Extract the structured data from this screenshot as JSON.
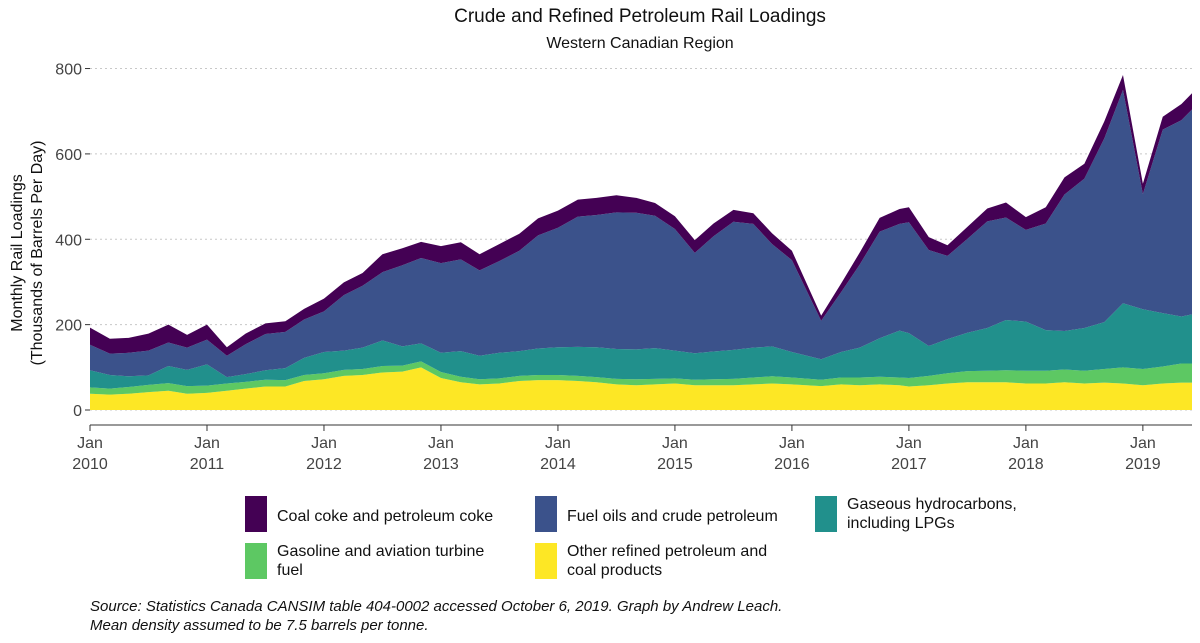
{
  "chart_data": {
    "type": "area",
    "stacked": true,
    "title": "Crude and Refined Petroleum Rail Loadings",
    "subtitle": "Western Canadian Region",
    "ylabel_lines": [
      "Monthly Rail Loadings",
      "(Thousands of Barrels Per Day)"
    ],
    "xlabel": "",
    "ylim": [
      0,
      820
    ],
    "yticks": [
      0,
      200,
      400,
      600,
      800
    ],
    "xlim": [
      2010.0,
      2019.42
    ],
    "xticks": [
      {
        "value": 2010,
        "lines": [
          "Jan",
          "2010"
        ]
      },
      {
        "value": 2011,
        "lines": [
          "Jan",
          "2011"
        ]
      },
      {
        "value": 2012,
        "lines": [
          "Jan",
          "2012"
        ]
      },
      {
        "value": 2013,
        "lines": [
          "Jan",
          "2013"
        ]
      },
      {
        "value": 2014,
        "lines": [
          "Jan",
          "2014"
        ]
      },
      {
        "value": 2015,
        "lines": [
          "Jan",
          "2015"
        ]
      },
      {
        "value": 2016,
        "lines": [
          "Jan",
          "2016"
        ]
      },
      {
        "value": 2017,
        "lines": [
          "Jan",
          "2017"
        ]
      },
      {
        "value": 2018,
        "lines": [
          "Jan",
          "2018"
        ]
      },
      {
        "value": 2019,
        "lines": [
          "Jan",
          "2019"
        ]
      }
    ],
    "grid": "horizontal-dotted",
    "legend_position": "bottom",
    "x": [
      2010.0,
      2010.17,
      2010.33,
      2010.5,
      2010.67,
      2010.83,
      2011.0,
      2011.17,
      2011.33,
      2011.5,
      2011.67,
      2011.83,
      2012.0,
      2012.17,
      2012.33,
      2012.5,
      2012.67,
      2012.83,
      2013.0,
      2013.17,
      2013.33,
      2013.5,
      2013.67,
      2013.83,
      2014.0,
      2014.17,
      2014.33,
      2014.5,
      2014.67,
      2014.83,
      2015.0,
      2015.17,
      2015.33,
      2015.5,
      2015.67,
      2015.83,
      2016.0,
      2016.25,
      2016.42,
      2016.58,
      2016.75,
      2016.92,
      2017.0,
      2017.17,
      2017.33,
      2017.5,
      2017.67,
      2017.83,
      2018.0,
      2018.17,
      2018.33,
      2018.5,
      2018.67,
      2018.83,
      2019.0,
      2019.17,
      2019.33,
      2019.42
    ],
    "series": [
      {
        "name": "Other refined petroleum and coal products",
        "color": "#FDE725",
        "values": [
          38,
          36,
          38,
          42,
          45,
          38,
          40,
          45,
          50,
          55,
          55,
          68,
          72,
          80,
          82,
          88,
          90,
          100,
          75,
          65,
          60,
          62,
          68,
          70,
          70,
          68,
          65,
          60,
          58,
          60,
          62,
          58,
          58,
          58,
          60,
          62,
          60,
          56,
          60,
          58,
          60,
          58,
          55,
          58,
          62,
          65,
          65,
          65,
          62,
          62,
          65,
          62,
          64,
          62,
          58,
          62,
          64,
          64
        ]
      },
      {
        "name": "Gasoline and aviation turbine fuel",
        "color": "#5DC863",
        "values": [
          15,
          14,
          16,
          17,
          18,
          18,
          17,
          17,
          16,
          16,
          15,
          14,
          14,
          14,
          14,
          15,
          14,
          14,
          14,
          13,
          12,
          12,
          12,
          12,
          12,
          12,
          12,
          13,
          14,
          13,
          12,
          13,
          14,
          15,
          16,
          17,
          16,
          15,
          16,
          18,
          18,
          18,
          20,
          22,
          24,
          26,
          27,
          28,
          30,
          30,
          30,
          30,
          32,
          38,
          38,
          40,
          45,
          45
        ]
      },
      {
        "name": "Gaseous hydrocarbons, including LPGs",
        "color": "#21908C",
        "values": [
          40,
          32,
          25,
          22,
          40,
          38,
          50,
          15,
          18,
          22,
          28,
          40,
          50,
          45,
          50,
          60,
          45,
          42,
          45,
          60,
          55,
          60,
          58,
          62,
          65,
          68,
          70,
          70,
          70,
          72,
          65,
          62,
          65,
          68,
          70,
          70,
          60,
          48,
          60,
          70,
          90,
          110,
          105,
          70,
          80,
          90,
          100,
          118,
          115,
          95,
          90,
          100,
          110,
          150,
          140,
          125,
          110,
          115
        ]
      },
      {
        "name": "Fuel oils and crude petroleum",
        "color": "#3B528B",
        "values": [
          60,
          50,
          55,
          58,
          55,
          52,
          58,
          50,
          70,
          85,
          85,
          90,
          95,
          130,
          145,
          160,
          190,
          200,
          210,
          215,
          200,
          215,
          235,
          265,
          280,
          305,
          310,
          320,
          320,
          310,
          285,
          235,
          270,
          300,
          290,
          240,
          215,
          90,
          140,
          195,
          250,
          250,
          260,
          225,
          195,
          220,
          250,
          240,
          215,
          250,
          320,
          350,
          430,
          500,
          270,
          430,
          460,
          480
        ]
      },
      {
        "name": "Coal coke and petroleum coke",
        "color": "#440154",
        "values": [
          40,
          35,
          35,
          40,
          42,
          30,
          35,
          20,
          25,
          25,
          25,
          25,
          30,
          30,
          30,
          42,
          40,
          38,
          40,
          40,
          38,
          40,
          40,
          40,
          40,
          40,
          40,
          40,
          35,
          30,
          30,
          30,
          30,
          28,
          25,
          25,
          22,
          12,
          20,
          28,
          32,
          35,
          35,
          30,
          25,
          28,
          30,
          35,
          30,
          38,
          40,
          35,
          40,
          35,
          24,
          30,
          38,
          38
        ]
      }
    ]
  },
  "legend": {
    "items": [
      {
        "label": "Coal coke and petroleum coke",
        "color": "#440154"
      },
      {
        "label": "Fuel oils and crude petroleum",
        "color": "#3B528B"
      },
      {
        "label": "Gaseous hydrocarbons,\nincluding LPGs",
        "color": "#21908C"
      },
      {
        "label": "Gasoline and aviation turbine\nfuel",
        "color": "#5DC863"
      },
      {
        "label": "Other refined petroleum and\ncoal products",
        "color": "#FDE725"
      }
    ]
  },
  "caption": {
    "line1": "Source: Statistics Canada CANSIM table 404-0002 accessed October 6, 2019. Graph by Andrew Leach.",
    "line2": "Mean density assumed to be 7.5 barrels per tonne."
  }
}
